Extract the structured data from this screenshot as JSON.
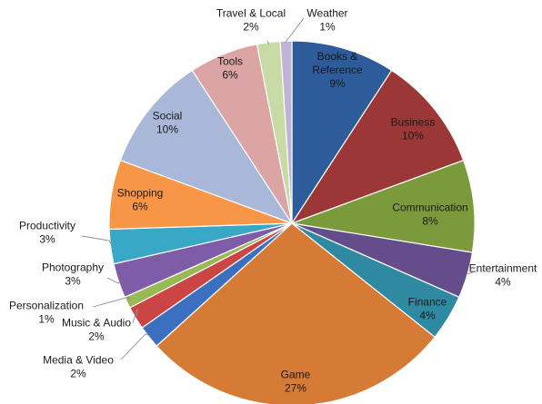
{
  "chart_data": {
    "type": "pie",
    "title": "",
    "legend": "none",
    "slices": [
      {
        "label": [
          "Books &",
          "Reference"
        ],
        "value": 9,
        "display": "9%",
        "color": "#2e5b99"
      },
      {
        "label": [
          "Business"
        ],
        "value": 10,
        "display": "10%",
        "color": "#9c3737"
      },
      {
        "label": [
          "Communication"
        ],
        "value": 8,
        "display": "8%",
        "color": "#7a9a3c"
      },
      {
        "label": [
          "Entertainment"
        ],
        "value": 4,
        "display": "4%",
        "color": "#654c8a"
      },
      {
        "label": [
          "Finance"
        ],
        "value": 4,
        "display": "4%",
        "color": "#2f8aa1"
      },
      {
        "label": [
          "Game"
        ],
        "value": 27,
        "display": "27%",
        "color": "#d57b35"
      },
      {
        "label": [
          "Media & Video"
        ],
        "value": 2,
        "display": "2%",
        "color": "#3a70bf"
      },
      {
        "label": [
          "Music & Audio"
        ],
        "value": 2,
        "display": "2%",
        "color": "#cc4545"
      },
      {
        "label": [
          "Personalization"
        ],
        "value": 1,
        "display": "1%",
        "color": "#98b954"
      },
      {
        "label": [
          "Photography"
        ],
        "value": 3,
        "display": "3%",
        "color": "#7e5ca8"
      },
      {
        "label": [
          "Productivity"
        ],
        "value": 3,
        "display": "3%",
        "color": "#38a8c6"
      },
      {
        "label": [
          "Shopping"
        ],
        "value": 6,
        "display": "6%",
        "color": "#f79646"
      },
      {
        "label": [
          "Social"
        ],
        "value": 10,
        "display": "10%",
        "color": "#a9b8d8"
      },
      {
        "label": [
          "Tools"
        ],
        "value": 6,
        "display": "6%",
        "color": "#dca5a5"
      },
      {
        "label": [
          "Travel & Local"
        ],
        "value": 2,
        "display": "2%",
        "color": "#c8dba6"
      },
      {
        "label": [
          "Weather"
        ],
        "value": 1,
        "display": "1%",
        "color": "#bfb3d6"
      }
    ]
  }
}
